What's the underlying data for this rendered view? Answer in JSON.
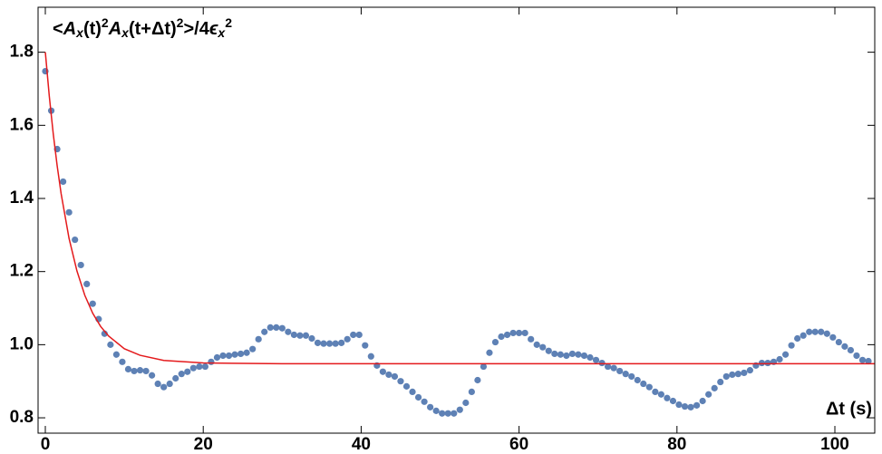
{
  "chart_data": {
    "type": "scatter",
    "ylabel": [
      {
        "text": "<",
        "pos": "base"
      },
      {
        "text": "A",
        "pos": "base",
        "italic": true
      },
      {
        "text": "x",
        "pos": "sub",
        "italic": true
      },
      {
        "text": "(t)",
        "pos": "base"
      },
      {
        "text": "2",
        "pos": "sup"
      },
      {
        "text": "A",
        "pos": "base",
        "italic": true
      },
      {
        "text": "x",
        "pos": "sub",
        "italic": true
      },
      {
        "text": "(t+Δt)",
        "pos": "base"
      },
      {
        "text": "2",
        "pos": "sup"
      },
      {
        "text": ">/4",
        "pos": "base"
      },
      {
        "text": "ϵ",
        "pos": "base",
        "italic": true
      },
      {
        "text": "x",
        "pos": "sub",
        "italic": true
      },
      {
        "text": "2",
        "pos": "sup"
      }
    ],
    "xlabel": "Δt (s)",
    "xlim": [
      -0.92,
      105.05
    ],
    "ylim": [
      0.758,
      1.923
    ],
    "xticks": [
      0,
      20,
      40,
      60,
      80,
      100
    ],
    "yticks": [
      0.8,
      {
        "value": 1.0,
        "label": "1.0"
      },
      1.2,
      1.4,
      1.6,
      1.8
    ],
    "series": [
      {
        "color": "#5e81b5",
        "x": [
          0,
          0.75,
          1.5,
          2.25,
          3,
          3.75,
          4.5,
          5.25,
          6,
          6.75,
          7.5,
          8.25,
          9,
          9.75,
          10.5,
          11.25,
          12,
          12.75,
          13.5,
          14.25,
          15,
          15.75,
          16.5,
          17.25,
          18,
          18.75,
          19.5,
          20.25,
          21,
          21.75,
          22.5,
          23.25,
          24,
          24.75,
          25.5,
          26.25,
          27,
          27.75,
          28.5,
          29.25,
          30,
          30.75,
          31.5,
          32.25,
          33,
          33.75,
          34.5,
          35.25,
          36,
          36.75,
          37.5,
          38.25,
          39,
          39.75,
          40.5,
          41.25,
          42,
          42.75,
          43.5,
          44.25,
          45,
          45.75,
          46.5,
          47.25,
          48,
          48.75,
          49.5,
          50.25,
          51,
          51.75,
          52.5,
          53.25,
          54,
          54.75,
          55.5,
          56.25,
          57,
          57.75,
          58.5,
          59.25,
          60,
          60.75,
          61.5,
          62.25,
          63,
          63.75,
          64.5,
          65.25,
          66,
          66.75,
          67.5,
          68.25,
          69,
          69.75,
          70.5,
          71.25,
          72,
          72.75,
          73.5,
          74.25,
          75,
          75.75,
          76.5,
          77.25,
          78,
          78.75,
          79.5,
          80.25,
          81,
          81.75,
          82.5,
          83.25,
          84,
          84.75,
          85.5,
          86.25,
          87,
          87.75,
          88.5,
          89.25,
          90,
          90.75,
          91.5,
          92.25,
          93,
          93.75,
          94.5,
          95.25,
          96,
          96.75,
          97.5,
          98.25,
          99,
          99.75,
          100.5,
          101.25,
          102,
          102.75,
          103.5,
          104.25
        ],
        "values": [
          1.748,
          1.64,
          1.535,
          1.446,
          1.362,
          1.287,
          1.218,
          1.166,
          1.112,
          1.07,
          1.03,
          1.0,
          0.973,
          0.953,
          0.933,
          0.928,
          0.93,
          0.928,
          0.916,
          0.893,
          0.884,
          0.893,
          0.908,
          0.92,
          0.926,
          0.936,
          0.94,
          0.94,
          0.953,
          0.965,
          0.97,
          0.97,
          0.973,
          0.975,
          0.978,
          0.988,
          1.015,
          1.035,
          1.047,
          1.047,
          1.045,
          1.035,
          1.027,
          1.025,
          1.025,
          1.017,
          1.005,
          1.003,
          1.003,
          1.003,
          1.005,
          1.015,
          1.027,
          1.027,
          0.998,
          0.968,
          0.943,
          0.926,
          0.918,
          0.913,
          0.9,
          0.886,
          0.871,
          0.856,
          0.844,
          0.829,
          0.819,
          0.812,
          0.812,
          0.812,
          0.822,
          0.841,
          0.871,
          0.903,
          0.94,
          0.978,
          1.007,
          1.022,
          1.027,
          1.032,
          1.032,
          1.032,
          1.015,
          1.0,
          0.993,
          0.983,
          0.975,
          0.973,
          0.97,
          0.975,
          0.973,
          0.97,
          0.965,
          0.958,
          0.95,
          0.94,
          0.936,
          0.928,
          0.92,
          0.913,
          0.903,
          0.893,
          0.884,
          0.871,
          0.864,
          0.854,
          0.846,
          0.836,
          0.831,
          0.829,
          0.834,
          0.846,
          0.864,
          0.881,
          0.898,
          0.913,
          0.918,
          0.92,
          0.923,
          0.93,
          0.943,
          0.95,
          0.95,
          0.953,
          0.96,
          0.973,
          0.998,
          1.017,
          1.025,
          1.035,
          1.035,
          1.035,
          1.03,
          1.02,
          1.007,
          0.995,
          0.985,
          0.97,
          0.958,
          0.955
        ]
      },
      {
        "type": "line",
        "color": "#e41a1c",
        "x": [
          0,
          0.5,
          1,
          1.5,
          2,
          3,
          4,
          5,
          6,
          7,
          8,
          10,
          12,
          15,
          20,
          30,
          105
        ],
        "values": [
          1.8,
          1.68,
          1.577,
          1.489,
          1.413,
          1.291,
          1.202,
          1.135,
          1.086,
          1.05,
          1.024,
          0.989,
          0.971,
          0.957,
          0.95,
          0.948,
          0.948
        ]
      }
    ]
  }
}
